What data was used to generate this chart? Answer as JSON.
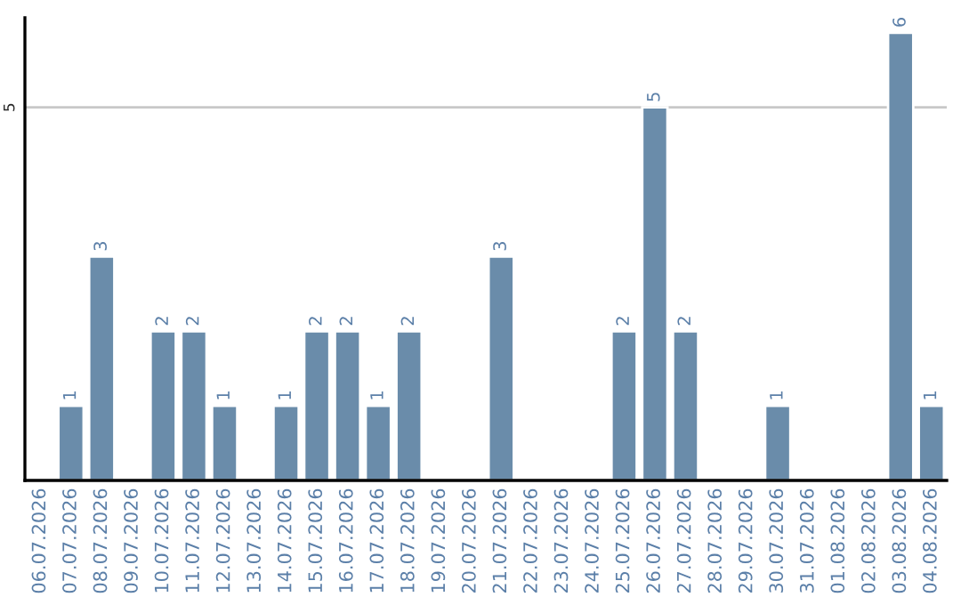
{
  "chart_data": {
    "type": "bar",
    "categories": [
      "06.07.2026",
      "07.07.2026",
      "08.07.2026",
      "09.07.2026",
      "10.07.2026",
      "11.07.2026",
      "12.07.2026",
      "13.07.2026",
      "14.07.2026",
      "15.07.2026",
      "16.07.2026",
      "17.07.2026",
      "18.07.2026",
      "19.07.2026",
      "20.07.2026",
      "21.07.2026",
      "22.07.2026",
      "23.07.2026",
      "24.07.2026",
      "25.07.2026",
      "26.07.2026",
      "27.07.2026",
      "28.07.2026",
      "29.07.2026",
      "30.07.2026",
      "31.07.2026",
      "01.08.2026",
      "02.08.2026",
      "03.08.2026",
      "04.08.2026"
    ],
    "values": [
      0,
      1,
      3,
      0,
      2,
      2,
      1,
      0,
      1,
      2,
      2,
      1,
      2,
      0,
      0,
      3,
      0,
      0,
      0,
      2,
      5,
      2,
      0,
      0,
      1,
      0,
      0,
      0,
      6,
      1
    ],
    "value_labels": [
      null,
      "1",
      "3",
      null,
      "2",
      "2",
      "1",
      null,
      "1",
      "2",
      "2",
      "1",
      "2",
      null,
      null,
      "3",
      null,
      null,
      null,
      "2",
      "5",
      "2",
      null,
      null,
      "1",
      null,
      null,
      null,
      "6",
      "1"
    ],
    "color": "#6a8caa",
    "ylim": [
      0,
      6.2
    ],
    "yticks": [
      5
    ],
    "grid": "y",
    "legend": false
  }
}
